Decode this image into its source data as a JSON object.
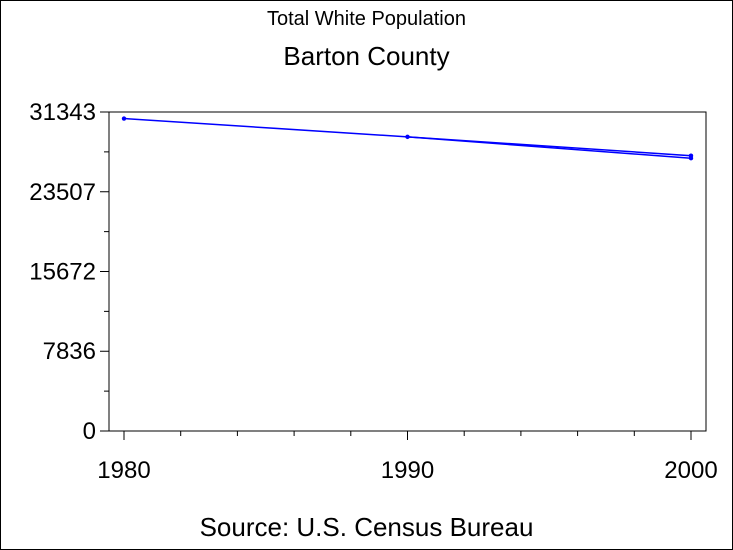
{
  "chart_data": {
    "type": "line",
    "title": "Total White Population",
    "subtitle": "Barton County",
    "source": "Source: U.S. Census Bureau",
    "xlim": [
      1980,
      2000
    ],
    "ylim": [
      0,
      31343
    ],
    "x_ticks": [
      "1980",
      "1990",
      "2000"
    ],
    "y_ticks": [
      "0",
      "7836",
      "15672",
      "23507",
      "31343"
    ],
    "y_tick_values": [
      0,
      7836,
      15672,
      23507,
      31343
    ],
    "x_tick_values": [
      1980,
      1990,
      2000
    ],
    "line_color": "#0000ff",
    "series": [
      {
        "x": [
          1980,
          1990,
          2000,
          2000
        ],
        "values": [
          30700,
          28900,
          27050,
          26800
        ]
      }
    ]
  }
}
